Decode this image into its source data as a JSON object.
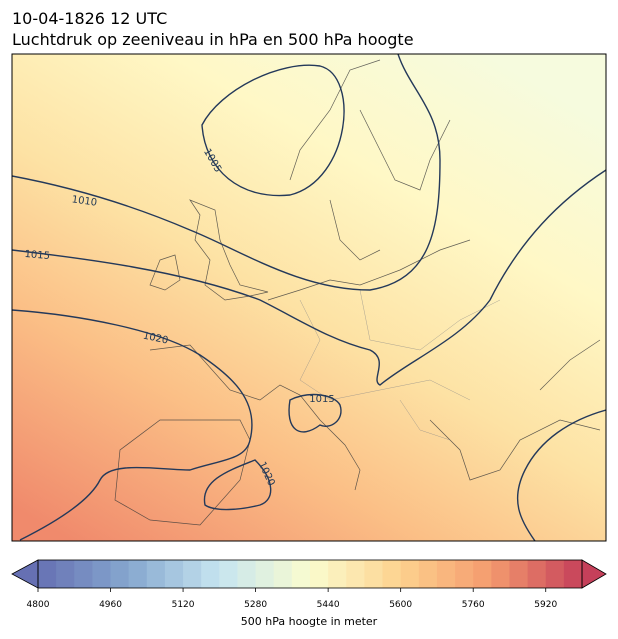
{
  "title": "10-04-1826 12 UTC",
  "subtitle": "Luchtdruk op zeeniveau in hPa en 500 hPa hoogte",
  "contour_labels": [
    "1005",
    "1010",
    "1015",
    "1020",
    "1015",
    "1020"
  ],
  "colorbar": {
    "min": 4800,
    "max": 6000,
    "step": 40,
    "ticks": [
      4800,
      4960,
      5120,
      5280,
      5440,
      5600,
      5760,
      5920
    ],
    "label": "500 hPa hoogte in meter",
    "colors": [
      "#6670b3",
      "#86a7cf",
      "#c6e5f0",
      "#fafccf",
      "#fdd28e",
      "#f49a6e",
      "#c5405a"
    ]
  }
}
